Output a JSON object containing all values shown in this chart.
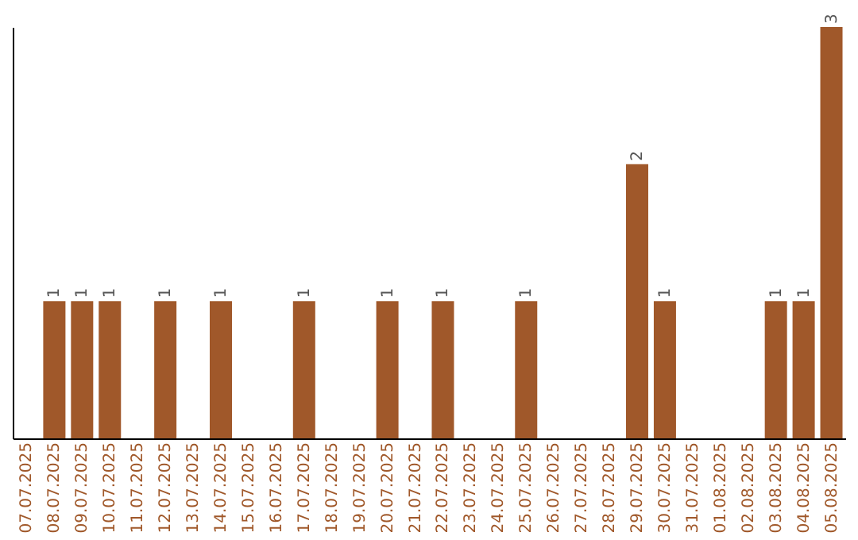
{
  "chart_data": {
    "type": "bar",
    "categories": [
      "07.07.2025",
      "08.07.2025",
      "09.07.2025",
      "10.07.2025",
      "11.07.2025",
      "12.07.2025",
      "13.07.2025",
      "14.07.2025",
      "15.07.2025",
      "16.07.2025",
      "17.07.2025",
      "18.07.2025",
      "19.07.2025",
      "20.07.2025",
      "21.07.2025",
      "22.07.2025",
      "23.07.2025",
      "24.07.2025",
      "25.07.2025",
      "26.07.2025",
      "27.07.2025",
      "28.07.2025",
      "29.07.2025",
      "30.07.2025",
      "31.07.2025",
      "01.08.2025",
      "02.08.2025",
      "03.08.2025",
      "04.08.2025",
      "05.08.2025"
    ],
    "values": [
      0,
      1,
      1,
      1,
      0,
      1,
      0,
      1,
      0,
      0,
      1,
      0,
      0,
      1,
      0,
      1,
      0,
      0,
      1,
      0,
      0,
      0,
      2,
      1,
      0,
      0,
      0,
      1,
      1,
      3
    ],
    "value_labels": [
      null,
      "1",
      "1",
      "1",
      null,
      "1",
      null,
      "1",
      null,
      null,
      "1",
      null,
      null,
      "1",
      null,
      "1",
      null,
      null,
      "1",
      null,
      null,
      null,
      "2",
      "1",
      null,
      null,
      null,
      "1",
      "1",
      "3"
    ],
    "color": "#a0582a",
    "tick_labels": "x",
    "grid": false
  }
}
